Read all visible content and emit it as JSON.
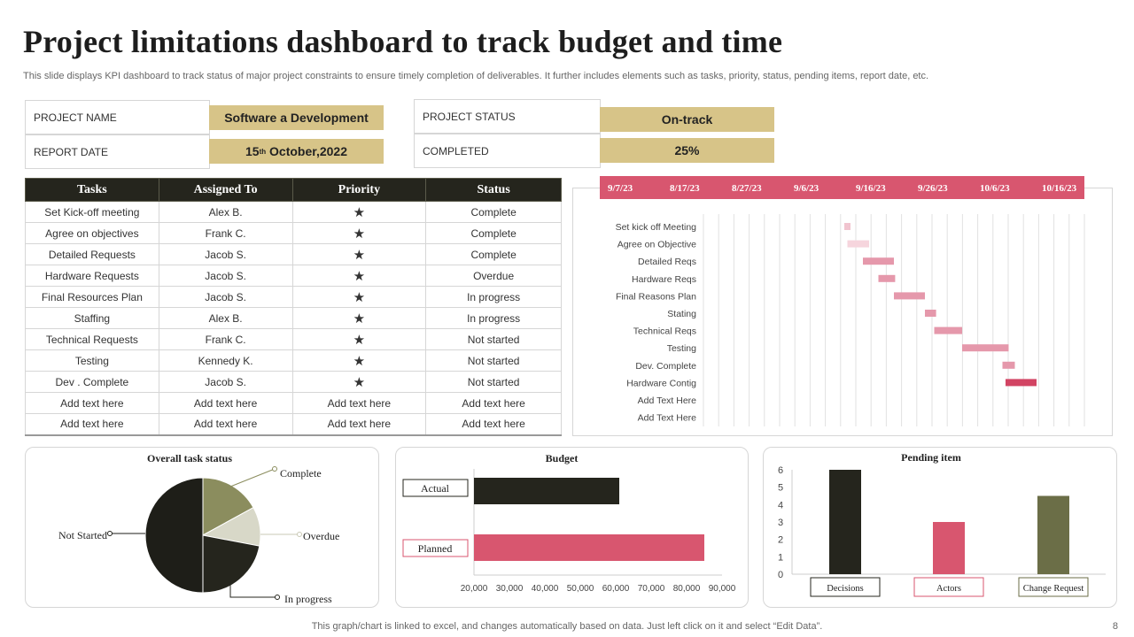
{
  "title": "Project limitations dashboard to track budget and time",
  "subtitle": "This slide displays KPI dashboard to track status of major project constraints to ensure timely completion of deliverables. It further includes elements such as tasks, priority, status, pending items, report date, etc.",
  "info": {
    "project_name_label": "PROJECT NAME",
    "project_name_value": "Software a Development",
    "report_date_label": "REPORT DATE",
    "report_date_day": "15",
    "report_date_suffix": "th",
    "report_date_rest": " October,2022",
    "project_status_label": "PROJECT STATUS",
    "project_status_value": "On-track",
    "completed_label": "COMPLETED",
    "completed_value": "25%"
  },
  "colors": {
    "gold": "#d7c488",
    "dark": "#25251d",
    "pink": "#d8566f",
    "olive": "#8b8d5e",
    "olive_dark": "#6b6e47",
    "light_gray": "#d8d8c8",
    "gantt_pink": "#e598ab"
  },
  "table": {
    "headers": [
      "Tasks",
      "Assigned To",
      "Priority",
      "Status"
    ],
    "rows": [
      {
        "task": "Set Kick-off meeting",
        "assigned": "Alex B.",
        "priority": "★",
        "status": "Complete"
      },
      {
        "task": "Agree on objectives",
        "assigned": "Frank C.",
        "priority": "★",
        "status": "Complete"
      },
      {
        "task": "Detailed Requests",
        "assigned": "Jacob S.",
        "priority": "★",
        "status": "Complete"
      },
      {
        "task": "Hardware Requests",
        "assigned": "Jacob S.",
        "priority": "★",
        "status": "Overdue"
      },
      {
        "task": "Final Resources Plan",
        "assigned": "Jacob S.",
        "priority": "★",
        "status": "In progress"
      },
      {
        "task": "Staffing",
        "assigned": "Alex B.",
        "priority": "★",
        "status": "In progress"
      },
      {
        "task": "Technical Requests",
        "assigned": "Frank C.",
        "priority": "★",
        "status": "Not started"
      },
      {
        "task": "Testing",
        "assigned": "Kennedy K.",
        "priority": "★",
        "status": "Not started"
      },
      {
        "task": "Dev . Complete",
        "assigned": "Jacob S.",
        "priority": "★",
        "status": "Not started"
      },
      {
        "task": "Add text here",
        "assigned": "Add text here",
        "priority": "Add text here",
        "status": "Add text here"
      },
      {
        "task": "Add text here",
        "assigned": "Add text here",
        "priority": "Add text here",
        "status": "Add text here"
      }
    ]
  },
  "chart_data": [
    {
      "type": "gantt",
      "dates": [
        "9/7/23",
        "8/17/23",
        "8/27/23",
        "9/6/23",
        "9/16/23",
        "9/26/23",
        "10/6/23",
        "10/16/23"
      ],
      "tasks": [
        {
          "name": "Set kick off Meeting",
          "start": 3.7,
          "duration": 0.1
        },
        {
          "name": "Agree on Objective",
          "start": 3.75,
          "duration": 0.35
        },
        {
          "name": "Detailed Reqs",
          "start": 4.0,
          "duration": 0.5
        },
        {
          "name": "Hardware Reqs",
          "start": 4.25,
          "duration": 0.27
        },
        {
          "name": "Final Reasons Plan",
          "start": 4.5,
          "duration": 0.5
        },
        {
          "name": "Stating",
          "start": 5.0,
          "duration": 0.18
        },
        {
          "name": "Technical Reqs",
          "start": 5.15,
          "duration": 0.45
        },
        {
          "name": "Testing",
          "start": 5.6,
          "duration": 0.75
        },
        {
          "name": "Dev. Complete",
          "start": 6.25,
          "duration": 0.2
        },
        {
          "name": "Hardware Contig",
          "start": 6.3,
          "duration": 0.5
        },
        {
          "name": "Add Text Here",
          "start": 0,
          "duration": 0
        },
        {
          "name": "Add Text Here",
          "start": 0,
          "duration": 0
        }
      ]
    },
    {
      "type": "pie",
      "title": "Overall task status",
      "slices": [
        {
          "label": "Complete",
          "value": 17,
          "color": "#8b8d5e"
        },
        {
          "label": "Overdue",
          "value": 11,
          "color": "#d8d8c8"
        },
        {
          "label": "In progress",
          "value": 22,
          "color": "#25251d"
        },
        {
          "label": "Not Started",
          "value": 50,
          "color": "#1e1e18"
        }
      ]
    },
    {
      "type": "bar",
      "orientation": "horizontal",
      "title": "Budget",
      "categories": [
        "Actual",
        "Planned"
      ],
      "values": [
        61000,
        85000
      ],
      "colors": [
        "#25251d",
        "#d8566f"
      ],
      "xlim": [
        20000,
        90000
      ],
      "ticks": [
        "20,000",
        "30,000",
        "40,000",
        "50,000",
        "60,000",
        "70,000",
        "80,000",
        "90,000"
      ]
    },
    {
      "type": "bar",
      "title": "Pending item",
      "categories": [
        "Decisions",
        "Actors",
        "Change Request"
      ],
      "values": [
        6,
        3,
        4.5
      ],
      "colors": [
        "#25251d",
        "#d8566f",
        "#6b6e47"
      ],
      "ylim": [
        0,
        6
      ],
      "ticks": [
        "0",
        "1",
        "2",
        "3",
        "4",
        "5",
        "6"
      ]
    }
  ],
  "footer": "This graph/chart is linked to excel,  and changes automatically based on data. Just left click on it and select “Edit Data”.",
  "page_number": "8"
}
